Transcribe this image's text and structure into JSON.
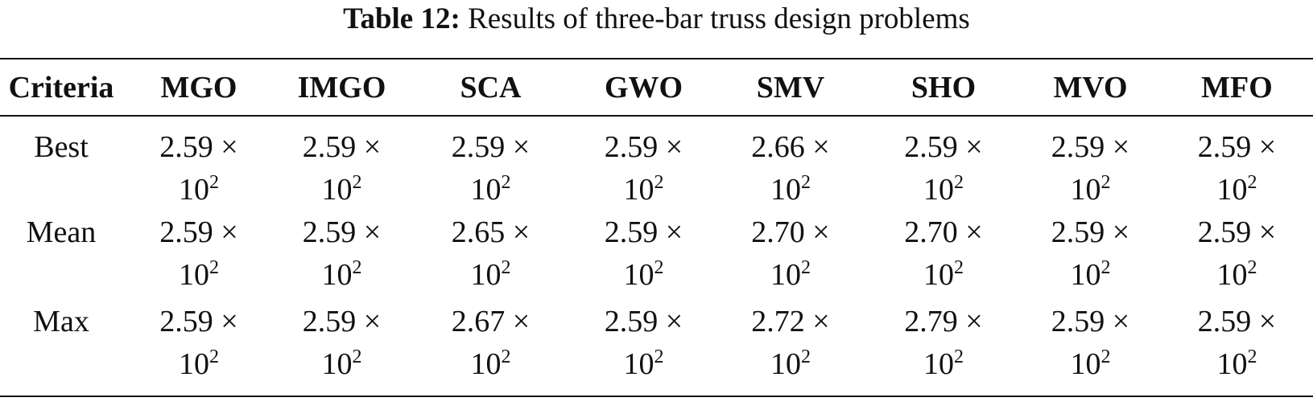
{
  "caption": {
    "label": "Table 12:",
    "text": "Results of three-bar truss design problems"
  },
  "table": {
    "columns": [
      "Criteria",
      "MGO",
      "IMGO",
      "SCA",
      "GWO",
      "SMV",
      "SHO",
      "MVO",
      "MFO"
    ],
    "rows": [
      {
        "criterion": "Best",
        "cells": [
          {
            "mantissa": "2.59 ×",
            "base": "10",
            "exp": "2"
          },
          {
            "mantissa": "2.59 ×",
            "base": "10",
            "exp": "2"
          },
          {
            "mantissa": "2.59 ×",
            "base": "10",
            "exp": "2"
          },
          {
            "mantissa": "2.59 ×",
            "base": "10",
            "exp": "2"
          },
          {
            "mantissa": "2.66 ×",
            "base": "10",
            "exp": "2"
          },
          {
            "mantissa": "2.59 ×",
            "base": "10",
            "exp": "2"
          },
          {
            "mantissa": "2.59 ×",
            "base": "10",
            "exp": "2"
          },
          {
            "mantissa": "2.59 ×",
            "base": "10",
            "exp": "2"
          }
        ]
      },
      {
        "criterion": "Mean",
        "cells": [
          {
            "mantissa": "2.59 ×",
            "base": "10",
            "exp": "2"
          },
          {
            "mantissa": "2.59 ×",
            "base": "10",
            "exp": "2"
          },
          {
            "mantissa": "2.65 ×",
            "base": "10",
            "exp": "2"
          },
          {
            "mantissa": "2.59 ×",
            "base": "10",
            "exp": "2"
          },
          {
            "mantissa": "2.70 ×",
            "base": "10",
            "exp": "2"
          },
          {
            "mantissa": "2.70 ×",
            "base": "10",
            "exp": "2"
          },
          {
            "mantissa": "2.59 ×",
            "base": "10",
            "exp": "2"
          },
          {
            "mantissa": "2.59 ×",
            "base": "10",
            "exp": "2"
          }
        ]
      },
      {
        "criterion": "Max",
        "cells": [
          {
            "mantissa": "2.59 ×",
            "base": "10",
            "exp": "2"
          },
          {
            "mantissa": "2.59 ×",
            "base": "10",
            "exp": "2"
          },
          {
            "mantissa": "2.67 ×",
            "base": "10",
            "exp": "2"
          },
          {
            "mantissa": "2.59 ×",
            "base": "10",
            "exp": "2"
          },
          {
            "mantissa": "2.72 ×",
            "base": "10",
            "exp": "2"
          },
          {
            "mantissa": "2.79 ×",
            "base": "10",
            "exp": "2"
          },
          {
            "mantissa": "2.59 ×",
            "base": "10",
            "exp": "2"
          },
          {
            "mantissa": "2.59 ×",
            "base": "10",
            "exp": "2"
          }
        ]
      }
    ]
  }
}
